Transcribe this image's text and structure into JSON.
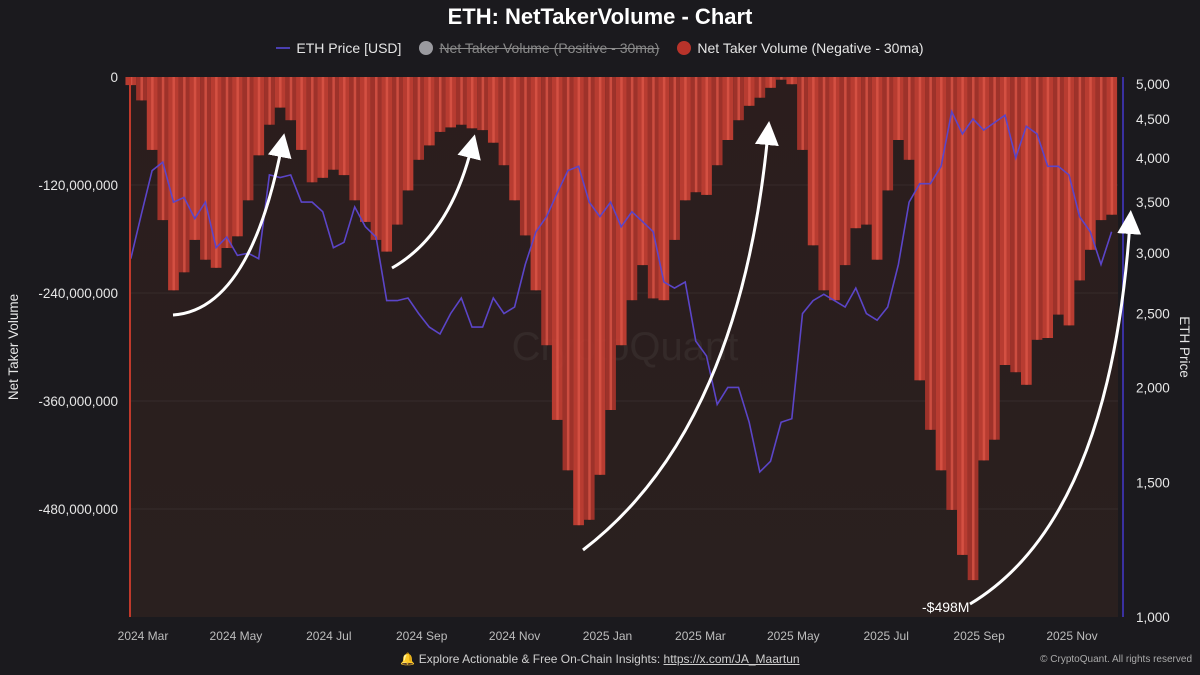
{
  "chart_data": {
    "type": "bar",
    "title": "ETH: NetTakerVolume - Chart",
    "legend": [
      {
        "name": "ETH Price [USD]",
        "color": "#5b45c8",
        "marker": "line",
        "hidden": false
      },
      {
        "name": "Net Taker Volume (Positive - 30ma)",
        "color": "#9a9a9f",
        "marker": "dot",
        "hidden": true
      },
      {
        "name": "Net Taker Volume (Negative - 30ma)",
        "color": "#c0392b",
        "marker": "dot",
        "hidden": false
      }
    ],
    "legend_position": "top-center",
    "ylabel": "Net Taker Volume",
    "y2label": "ETH Price",
    "ylim": [
      -600000000,
      0
    ],
    "y2lim": [
      1000,
      5000
    ],
    "y2scale": "log",
    "yticks": [
      "0",
      "-120,000,000",
      "-240,000,000",
      "-360,000,000",
      "-480,000,000"
    ],
    "y2ticks": [
      "5,000",
      "4,500",
      "4,000",
      "3,500",
      "3,000",
      "2,500",
      "2,000",
      "1,500",
      "1,000"
    ],
    "xticks": [
      "2024 Mar",
      "2024 May",
      "2024 Jul",
      "2024 Sep",
      "2024 Nov",
      "2025 Jan",
      "2025 Mar",
      "2025 May",
      "2025 Jul",
      "2025 Sep",
      "2025 Nov"
    ],
    "grid": true,
    "x": [
      "2024-02-22",
      "2024-02-29",
      "2024-03-07",
      "2024-03-14",
      "2024-03-21",
      "2024-03-28",
      "2024-04-04",
      "2024-04-11",
      "2024-04-18",
      "2024-04-25",
      "2024-05-02",
      "2024-05-09",
      "2024-05-16",
      "2024-05-23",
      "2024-05-30",
      "2024-06-06",
      "2024-06-13",
      "2024-06-20",
      "2024-06-27",
      "2024-07-04",
      "2024-07-11",
      "2024-07-18",
      "2024-07-25",
      "2024-08-01",
      "2024-08-08",
      "2024-08-15",
      "2024-08-22",
      "2024-08-29",
      "2024-09-05",
      "2024-09-12",
      "2024-09-19",
      "2024-09-26",
      "2024-10-03",
      "2024-10-10",
      "2024-10-17",
      "2024-10-24",
      "2024-10-31",
      "2024-11-07",
      "2024-11-14",
      "2024-11-21",
      "2024-11-28",
      "2024-12-05",
      "2024-12-12",
      "2024-12-19",
      "2024-12-26",
      "2025-01-02",
      "2025-01-09",
      "2025-01-16",
      "2025-01-23",
      "2025-01-30",
      "2025-02-06",
      "2025-02-13",
      "2025-02-20",
      "2025-02-27",
      "2025-03-06",
      "2025-03-13",
      "2025-03-20",
      "2025-03-27",
      "2025-04-03",
      "2025-04-10",
      "2025-04-17",
      "2025-04-24",
      "2025-05-01",
      "2025-05-08",
      "2025-05-15",
      "2025-05-22",
      "2025-05-29",
      "2025-06-05",
      "2025-06-12",
      "2025-06-19",
      "2025-06-26",
      "2025-07-03",
      "2025-07-10",
      "2025-07-17",
      "2025-07-24",
      "2025-07-31",
      "2025-08-07",
      "2025-08-14",
      "2025-08-21",
      "2025-08-28",
      "2025-09-04",
      "2025-09-11",
      "2025-09-18",
      "2025-09-25",
      "2025-10-02",
      "2025-10-09",
      "2025-10-16",
      "2025-10-23",
      "2025-10-30",
      "2025-11-06",
      "2025-11-13",
      "2025-11-20",
      "2025-11-27"
    ],
    "series": [
      {
        "name": "Net Taker Volume (Negative - 30ma)",
        "axis": "left",
        "values": [
          -9000000,
          -26000000,
          -81000000,
          -159000000,
          -237000000,
          -217000000,
          -181000000,
          -203000000,
          -212000000,
          -190000000,
          -177000000,
          -137000000,
          -87000000,
          -53000000,
          -34000000,
          -48000000,
          -81000000,
          -117000000,
          -112000000,
          -103000000,
          -109000000,
          -137000000,
          -161000000,
          -181000000,
          -194000000,
          -164000000,
          -126000000,
          -92000000,
          -76000000,
          -61000000,
          -56000000,
          -53000000,
          -57000000,
          -59000000,
          -73000000,
          -98000000,
          -137000000,
          -176000000,
          -237000000,
          -298000000,
          -381000000,
          -437000000,
          -498000000,
          -492000000,
          -442000000,
          -370000000,
          -298000000,
          -248000000,
          -209000000,
          -246000000,
          -248000000,
          -181000000,
          -137000000,
          -128000000,
          -131000000,
          -98000000,
          -70000000,
          -48000000,
          -32000000,
          -23000000,
          -12000000,
          -3000000,
          -8000000,
          -81000000,
          -187000000,
          -237000000,
          -248000000,
          -209000000,
          -168000000,
          -164000000,
          -203000000,
          -126000000,
          -70000000,
          -92000000,
          -337000000,
          -392000000,
          -437000000,
          -481000000,
          -531000000,
          -559000000,
          -426000000,
          -403000000,
          -320000000,
          -328000000,
          -342000000,
          -292000000,
          -290000000,
          -264000000,
          -276000000,
          -226000000,
          -192000000,
          -159000000,
          -153000000
        ]
      },
      {
        "name": "ETH Price [USD]",
        "axis": "right",
        "values": [
          2950,
          3380,
          3850,
          3950,
          3500,
          3550,
          3330,
          3500,
          3050,
          3150,
          2980,
          3000,
          2950,
          3800,
          3770,
          3800,
          3500,
          3500,
          3400,
          3050,
          3100,
          3450,
          3250,
          3150,
          2600,
          2600,
          2620,
          2500,
          2400,
          2350,
          2500,
          2620,
          2400,
          2400,
          2620,
          2500,
          2550,
          2900,
          3200,
          3350,
          3600,
          3850,
          3900,
          3500,
          3350,
          3500,
          3250,
          3400,
          3300,
          3200,
          2750,
          2700,
          2750,
          2300,
          2200,
          1900,
          2000,
          2000,
          1800,
          1550,
          1600,
          1800,
          1820,
          2500,
          2600,
          2650,
          2600,
          2550,
          2700,
          2500,
          2450,
          2550,
          2900,
          3500,
          3700,
          3700,
          3900,
          4600,
          4300,
          4500,
          4350,
          4450,
          4550,
          4000,
          4400,
          4300,
          3900,
          3900,
          3800,
          3350,
          3200,
          2900,
          3200
        ]
      }
    ],
    "annotations": [
      "-$498M"
    ],
    "watermark": "CryptoQuant",
    "colors": {
      "background": "#1b1a1e",
      "plot_background": "#2a1e1e",
      "negative_bar": "#c0392b",
      "price_line": "#5b45c8"
    }
  },
  "footer": {
    "bell_icon": "bell-icon",
    "text": "Explore Actionable & Free On-Chain Insights: ",
    "link": "https://x.com/JA_Maartun",
    "copyright": "© CryptoQuant. All rights reserved"
  }
}
